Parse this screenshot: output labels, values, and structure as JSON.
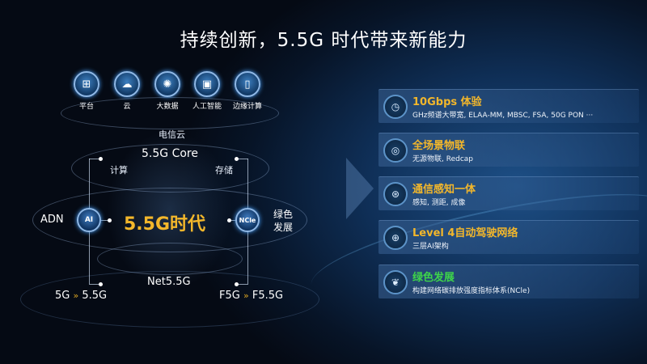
{
  "title": "持续创新，5.5G 时代带来新能力",
  "top_icons": [
    {
      "label": "平台",
      "icon": "platform-icon",
      "glyph": "⊞"
    },
    {
      "label": "云",
      "icon": "cloud-icon",
      "glyph": "☁"
    },
    {
      "label": "大数据",
      "icon": "big-data-icon",
      "glyph": "✺"
    },
    {
      "label": "人工智能",
      "icon": "ai-chip-icon",
      "glyph": "▣"
    },
    {
      "label": "边缘计算",
      "icon": "edge-computing-icon",
      "glyph": "▯"
    }
  ],
  "diagram": {
    "telecom_cloud": "电信云",
    "core": "5.5G Core",
    "compute": "计算",
    "storage": "存储",
    "adn": "ADN",
    "ai_node": "AI",
    "era": "5.5G时代",
    "ncle_node": "NCle",
    "green": "绿色",
    "development": "发展",
    "net": "Net5.5G",
    "left_from": "5G",
    "left_to": "5.5G",
    "right_from": "F5G",
    "right_to": "F5.5G",
    "arrow_glyph": "»"
  },
  "capabilities": [
    {
      "title": "10Gbps 体验",
      "desc": "GHz频谱大带宽, ELAA-MM, MBSC, FSA, 50G PON ···",
      "icon": "speed-gauge-icon",
      "glyph": "◷",
      "color": "#f3b72b"
    },
    {
      "title": "全场景物联",
      "desc": "无源物联, Redcap",
      "icon": "iot-network-icon",
      "glyph": "◎",
      "color": "#f3b72b"
    },
    {
      "title": "通信感知一体",
      "desc": "感知, 测距, 成像",
      "icon": "sensing-icon",
      "glyph": "⊛",
      "color": "#f3b72b"
    },
    {
      "title": "Level 4自动驾驶网络",
      "desc": "三层AI架构",
      "icon": "globe-network-icon",
      "glyph": "⊕",
      "color": "#f3b72b"
    },
    {
      "title": "绿色发展",
      "desc": "构建网络碳排放强度指标体系(NCle)",
      "icon": "leaf-icon",
      "glyph": "❦",
      "color": "#3ed44a"
    }
  ],
  "colors": {
    "accent_gold": "#f3b72b",
    "accent_green": "#3ed44a"
  }
}
